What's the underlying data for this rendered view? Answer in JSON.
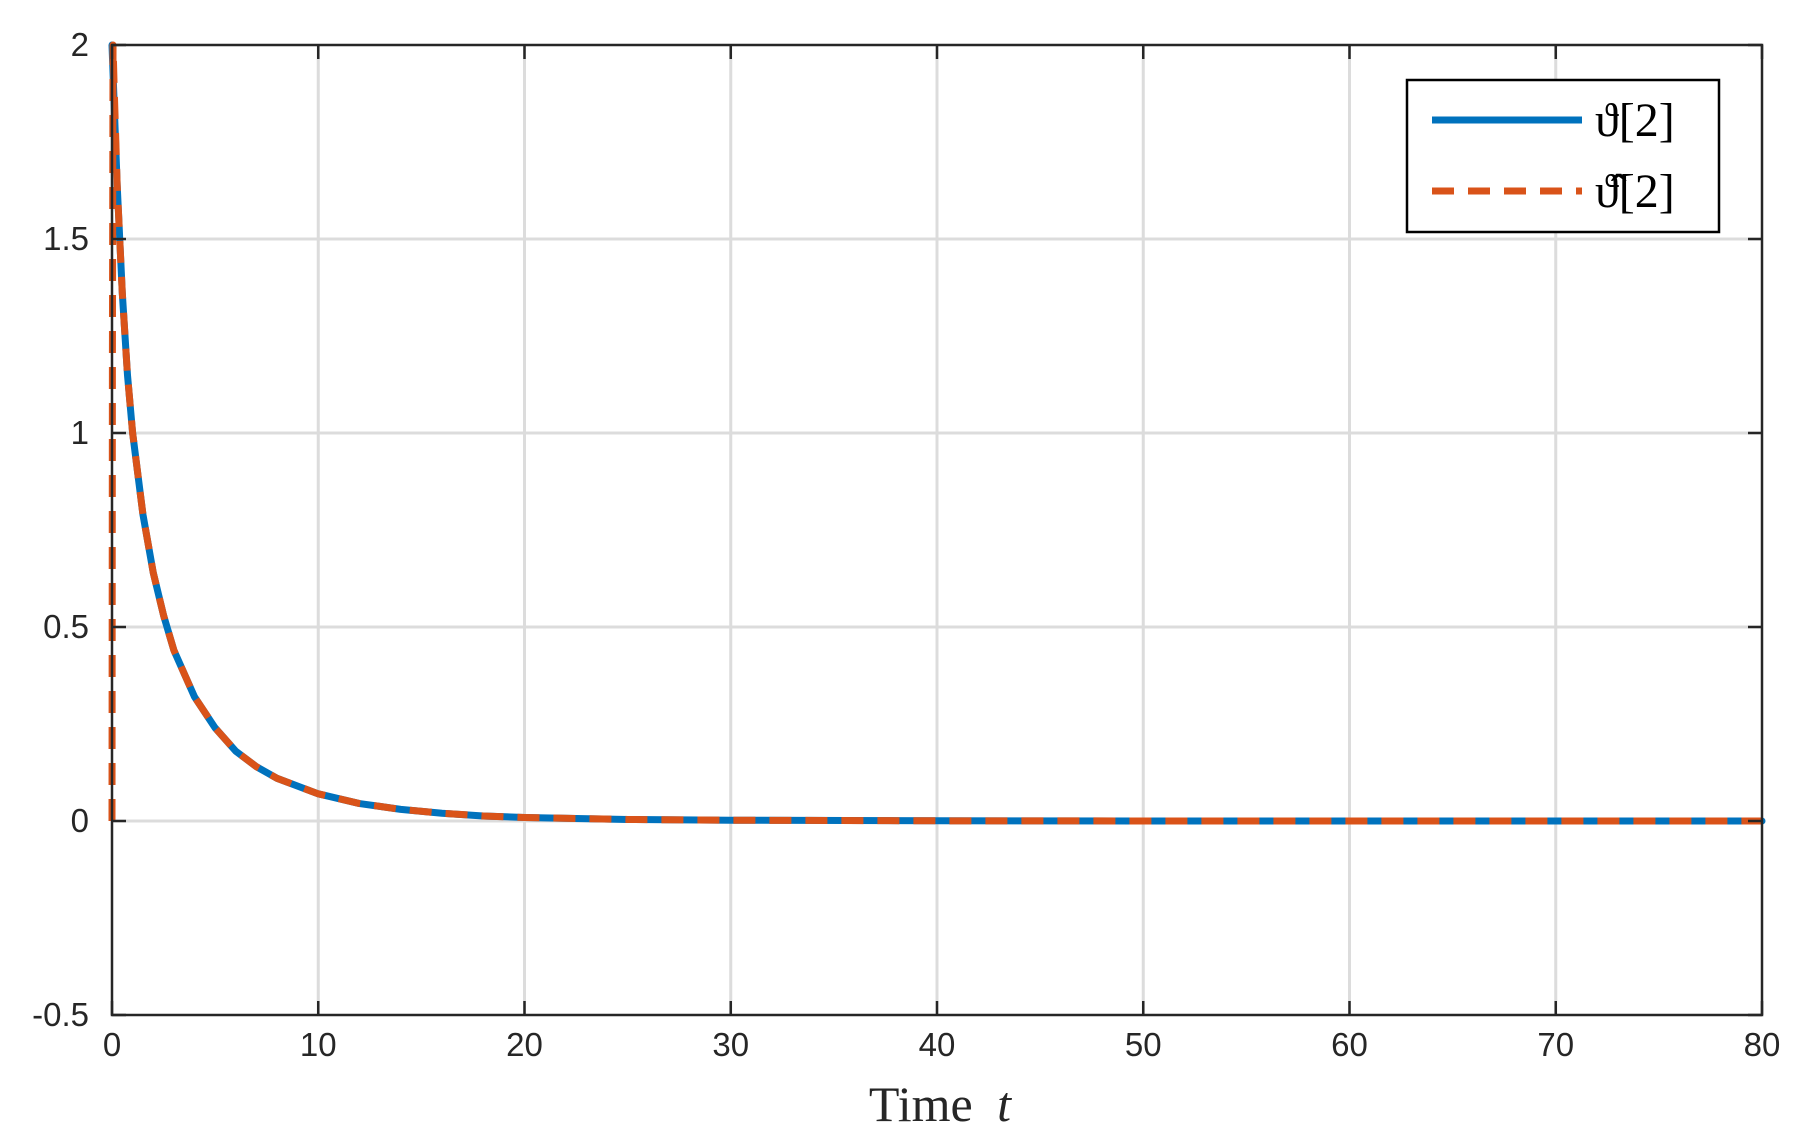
{
  "chart_data": {
    "type": "line",
    "title": "",
    "xlabel": "Time",
    "xlabel_var": "t",
    "ylabel": "",
    "xlim": [
      0,
      80
    ],
    "ylim": [
      -0.5,
      2
    ],
    "xticks": [
      0,
      10,
      20,
      30,
      40,
      50,
      60,
      70,
      80
    ],
    "yticks": [
      -0.5,
      0,
      0.5,
      1,
      1.5,
      2
    ],
    "xtick_labels": [
      "0",
      "10",
      "20",
      "30",
      "40",
      "50",
      "60",
      "70",
      "80"
    ],
    "ytick_labels": [
      "-0.5",
      "0",
      "0.5",
      "1",
      "1.5",
      "2"
    ],
    "grid": true,
    "legend_position": "top-right",
    "series": [
      {
        "name": "ϑ[2]",
        "color": "#0072BD",
        "style": "solid",
        "x": [
          0,
          0.25,
          0.5,
          0.75,
          1,
          1.5,
          2,
          2.5,
          3,
          4,
          5,
          6,
          7,
          8,
          10,
          12,
          14,
          16,
          18,
          20,
          25,
          30,
          40,
          50,
          60,
          70,
          80
        ],
        "y": [
          2,
          1.64,
          1.36,
          1.15,
          1.0,
          0.79,
          0.64,
          0.53,
          0.44,
          0.32,
          0.24,
          0.18,
          0.14,
          0.11,
          0.07,
          0.045,
          0.03,
          0.02,
          0.013,
          0.009,
          0.004,
          0.002,
          0.0005,
          0.0001,
          0,
          0,
          0
        ]
      },
      {
        "name": "ϑ̂[2]",
        "color": "#D95319",
        "style": "dashed",
        "x": [
          0,
          0.02,
          0.05,
          0.1,
          0.25,
          0.5,
          0.75,
          1,
          1.5,
          2,
          2.5,
          3,
          4,
          5,
          6,
          7,
          8,
          10,
          12,
          14,
          16,
          18,
          20,
          25,
          30,
          40,
          50,
          60,
          70,
          80
        ],
        "y": [
          0,
          1.2,
          2,
          1.9,
          1.64,
          1.36,
          1.15,
          1.0,
          0.79,
          0.64,
          0.53,
          0.44,
          0.32,
          0.24,
          0.18,
          0.14,
          0.11,
          0.07,
          0.045,
          0.03,
          0.02,
          0.013,
          0.009,
          0.004,
          0.002,
          0.0005,
          0.0001,
          0,
          0,
          0
        ]
      }
    ],
    "legend": [
      {
        "label_main": "ϑ[2]"
      },
      {
        "label_main": "ϑ̂[2]"
      }
    ]
  }
}
